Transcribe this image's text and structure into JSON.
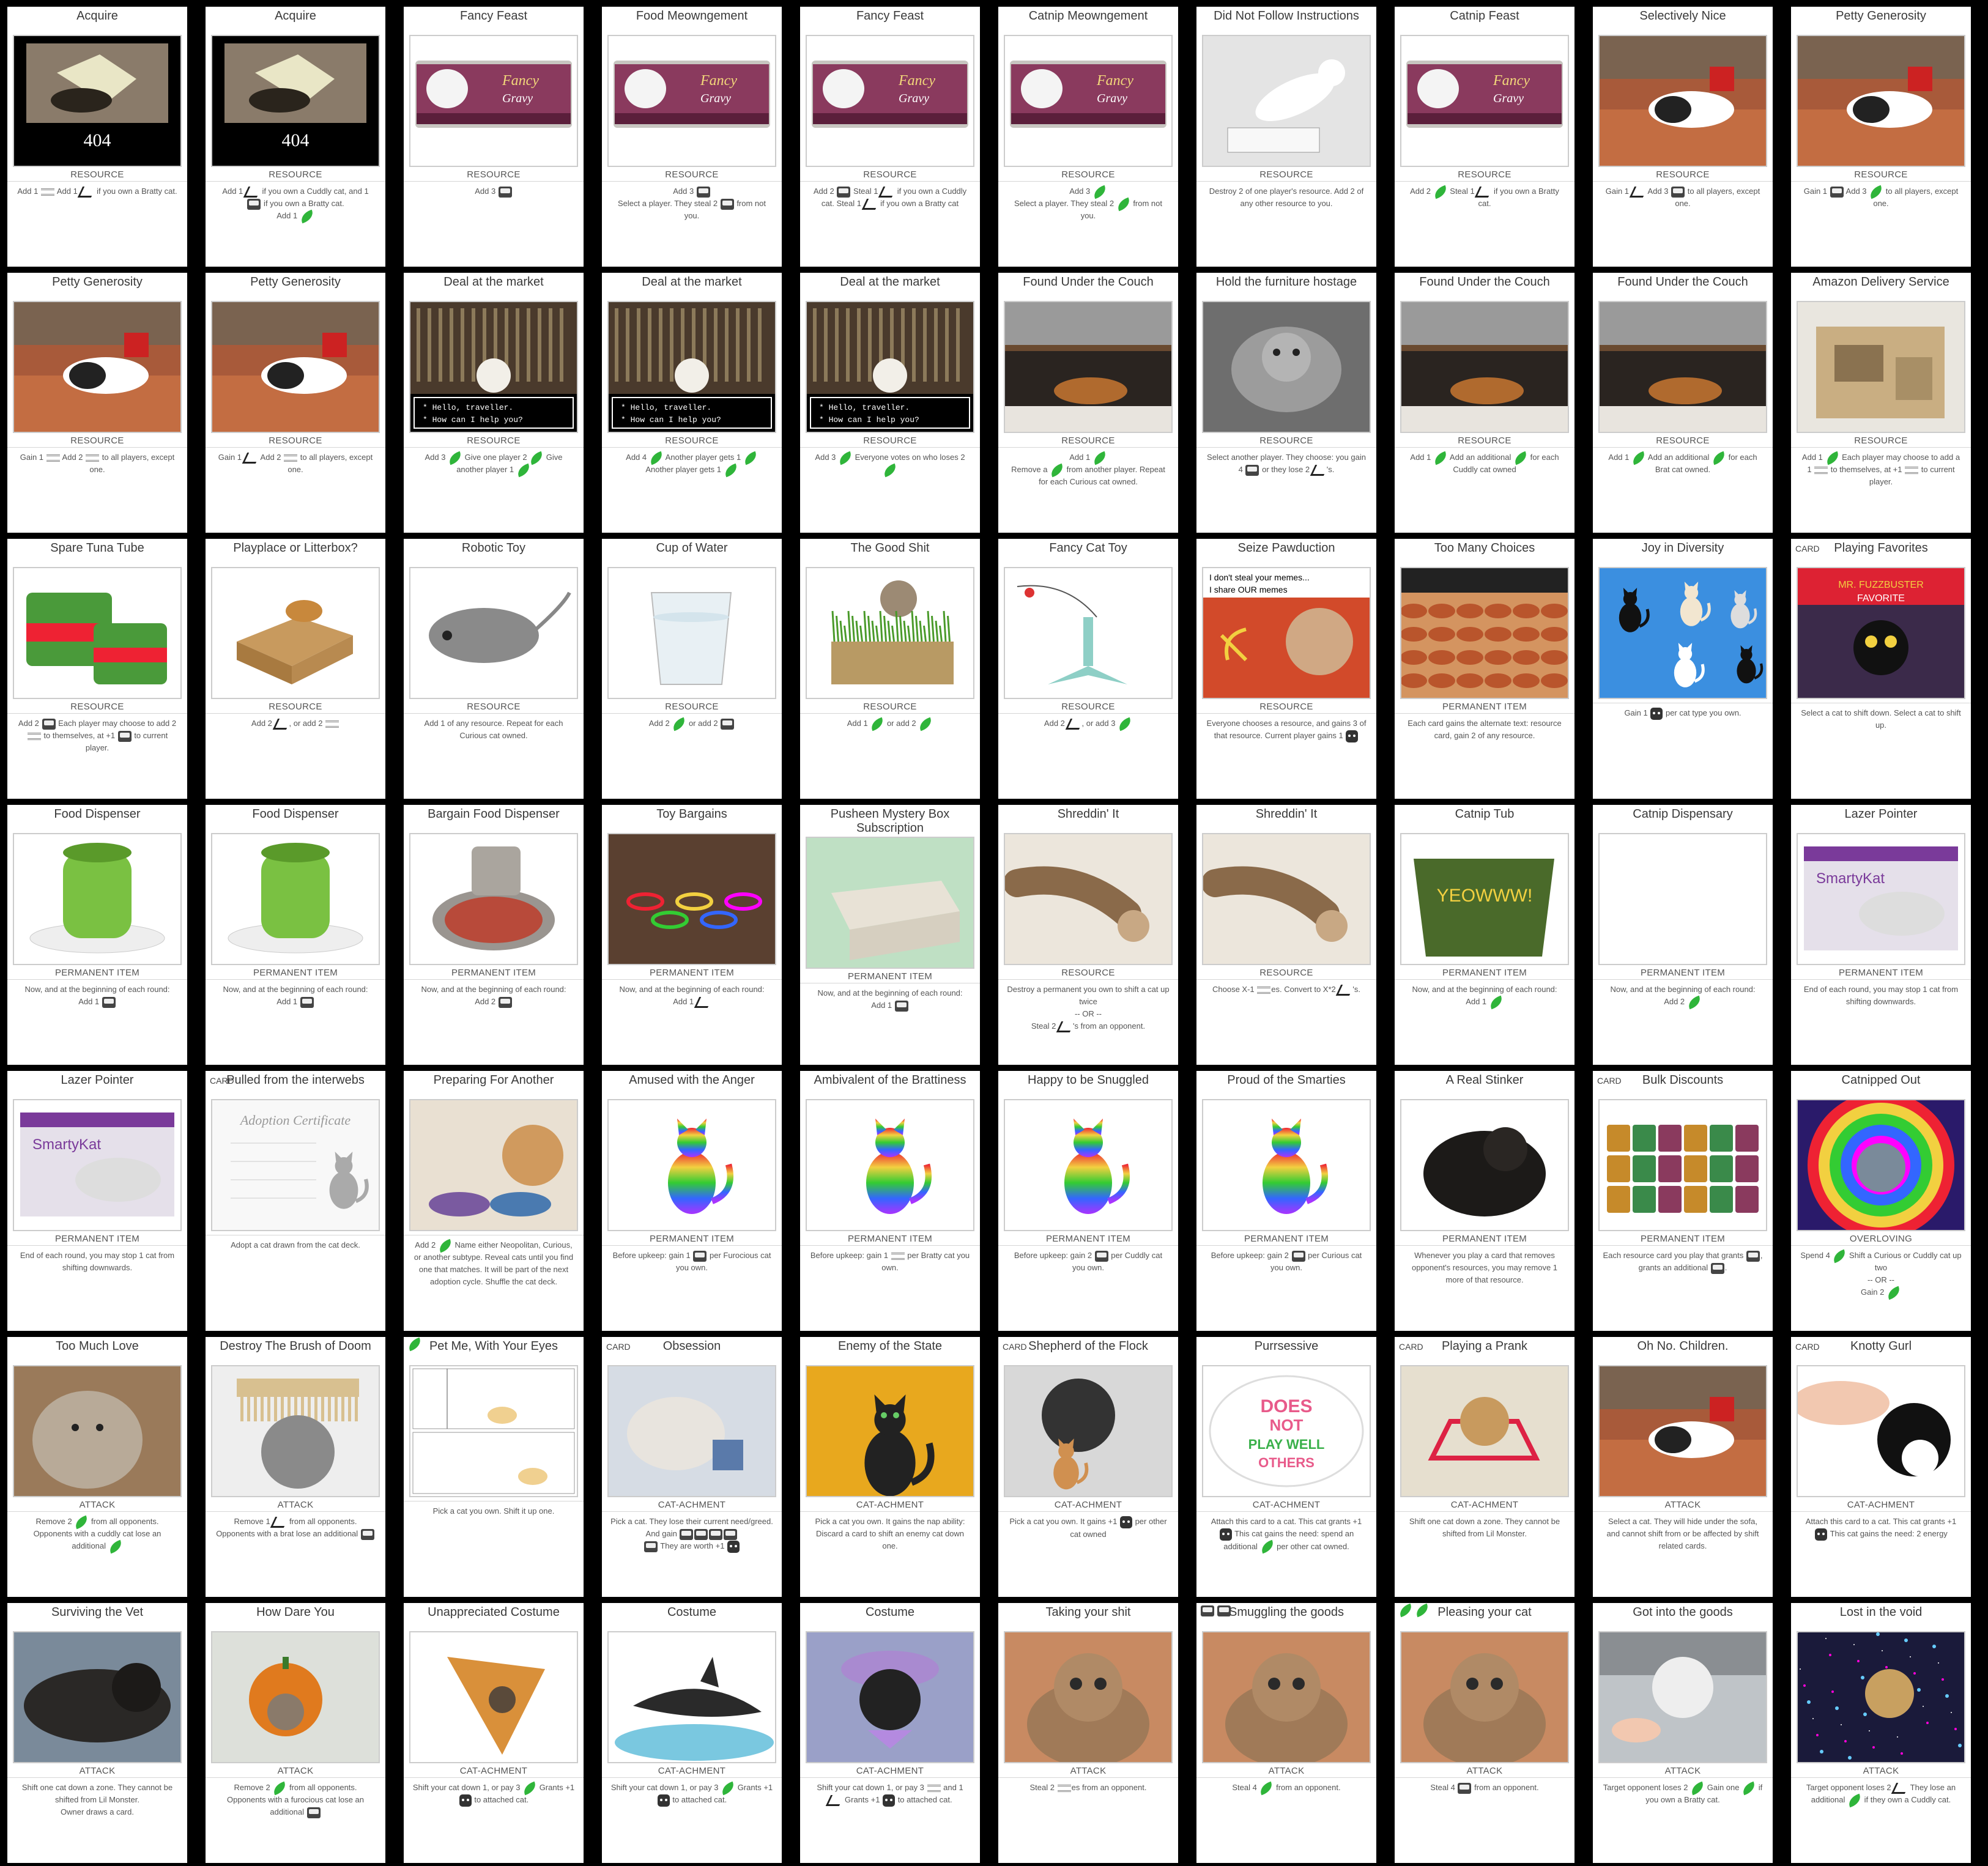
{
  "colors": {
    "background": "#000000",
    "card": "#ffffff",
    "leaf": "#2fb53a"
  },
  "icons": {
    "leaf": "leaf-icon",
    "food": "food-can-icon",
    "mouse": "mouse-icon",
    "shred": "shred-icon",
    "cat": "cat-icon"
  },
  "cards": [
    {
      "title": "Acquire",
      "type": "RESOURCE",
      "art": "404",
      "text": "Add 1 {shred} Add 1 {mouse} if you own a Bratty cat."
    },
    {
      "title": "Acquire",
      "type": "RESOURCE",
      "art": "404",
      "text": "Add 1 {mouse} if you own a Cuddly cat, and 1 {food} if you own a Bratty cat.\nAdd 1 {leaf}"
    },
    {
      "title": "Fancy Feast",
      "type": "RESOURCE",
      "art": "can",
      "text": "Add 3 {food}"
    },
    {
      "title": "Food Meowngement",
      "type": "RESOURCE",
      "art": "can",
      "text": "Add 3 {food}\nSelect a player. They steal 2 {food} from not you."
    },
    {
      "title": "Fancy Feast",
      "type": "RESOURCE",
      "art": "can",
      "text": "Add 2 {food} Steal 1 {mouse} if you own a Cuddly cat. Steal 1 {mouse} if you own a Bratty cat"
    },
    {
      "title": "Catnip Meowngement",
      "type": "RESOURCE",
      "art": "can",
      "text": "Add 3 {leaf}\nSelect a player. They steal 2 {leaf} from not you."
    },
    {
      "title": "Did Not Follow Instructions",
      "type": "RESOURCE",
      "art": "whitecat",
      "text": "Destroy 2 of one player's resource. Add 2 of any other resource to you."
    },
    {
      "title": "Catnip Feast",
      "type": "RESOURCE",
      "art": "can",
      "text": "Add 2 {leaf} Steal 1 {mouse} if you own a Bratty cat."
    },
    {
      "title": "Selectively Nice",
      "type": "RESOURCE",
      "art": "sofa",
      "text": "Gain 1 {mouse} Add 3 {food} to all players, except one."
    },
    {
      "title": "Petty Generosity",
      "type": "RESOURCE",
      "art": "sofa",
      "text": "Gain 1 {food} Add 3 {leaf} to all players, except one."
    },
    {
      "title": "Petty Generosity",
      "type": "RESOURCE",
      "art": "sofa",
      "text": "Gain 1 {shred} Add 2 {shred} to all players, except one."
    },
    {
      "title": "Petty Generosity",
      "type": "RESOURCE",
      "art": "sofa",
      "text": "Gain 1 {mouse} Add 2 {shred} to all players, except one."
    },
    {
      "title": "Deal at the market",
      "type": "RESOURCE",
      "art": "market",
      "text": "Add 3 {leaf} Give one player 2 {leaf} Give another player 1 {leaf}"
    },
    {
      "title": "Deal at the market",
      "type": "RESOURCE",
      "art": "market",
      "text": "Add 4 {leaf} Another player gets 1 {leaf}\nAnother player gets 1 {leaf}"
    },
    {
      "title": "Deal at the market",
      "type": "RESOURCE",
      "art": "market",
      "text": "Add 3 {leaf} Everyone votes on who loses 2 {leaf}"
    },
    {
      "title": "Found Under the Couch",
      "type": "RESOURCE",
      "art": "couch",
      "text": "Add 1 {leaf}\nRemove a {leaf} from another player. Repeat for each Curious cat owned."
    },
    {
      "title": "Hold the furniture hostage",
      "type": "RESOURCE",
      "art": "graycat",
      "text": "Select another player. They choose: you gain 4 {food} or they lose 2 {mouse}'s."
    },
    {
      "title": "Found Under the Couch",
      "type": "RESOURCE",
      "art": "couch",
      "text": "Add 1 {leaf} Add an additional {leaf} for each Cuddly cat owned"
    },
    {
      "title": "Found Under the Couch",
      "type": "RESOURCE",
      "art": "couch",
      "text": "Add 1 {leaf} Add an additional {leaf} for each Brat cat owned."
    },
    {
      "title": "Amazon Delivery Service",
      "type": "RESOURCE",
      "art": "box",
      "text": "Add 1 {leaf} Each player may choose to add a 1 {shred} to themselves, at +1 {shred} to current player."
    },
    {
      "title": "Spare Tuna Tube",
      "type": "RESOURCE",
      "art": "tuna",
      "text": "Add 2 {food} Each player may choose to add 2 {shred} to themselves, at +1 {food} to current player."
    },
    {
      "title": "Playplace or Litterbox?",
      "type": "RESOURCE",
      "art": "boxes",
      "text": "Add 2 {mouse}, or add 2 {shred}"
    },
    {
      "title": "Robotic Toy",
      "type": "RESOURCE",
      "art": "mouse",
      "text": "Add 1 of any resource. Repeat for each Curious cat owned."
    },
    {
      "title": "Cup of Water",
      "type": "RESOURCE",
      "art": "water",
      "text": "Add 2 {leaf} or add 2 {food}"
    },
    {
      "title": "The Good Shit",
      "type": "RESOURCE",
      "art": "grass",
      "text": "Add 1 {leaf} or add 2 {leaf}"
    },
    {
      "title": "Fancy Cat Toy",
      "type": "RESOURCE",
      "art": "toy",
      "text": "Add 2 {mouse}, or add 3 {leaf}"
    },
    {
      "title": "Seize Pawduction",
      "type": "RESOURCE",
      "art": "meme",
      "text": "Everyone chooses a resource, and gains 3 of that resource. Current player gains 1 {cat}"
    },
    {
      "title": "Too Many Choices",
      "type": "PERMANENT ITEM",
      "art": "hotdogs",
      "text": "Each card gains the alternate text: resource card, gain 2 of any resource."
    },
    {
      "title": "Joy in Diversity",
      "type": "",
      "art": "cats",
      "text": "Gain 1 {cat} per cat type you own."
    },
    {
      "title": "Playing Favorites",
      "tag": "CARD",
      "type": "",
      "art": "book",
      "text": "Select a cat to shift down. Select a cat to shift up."
    },
    {
      "title": "Food Dispenser",
      "type": "PERMANENT ITEM",
      "art": "dispenser",
      "text": "Now, and at the beginning of each round:\nAdd 1 {food}"
    },
    {
      "title": "Food Dispenser",
      "type": "PERMANENT ITEM",
      "art": "dispenser",
      "text": "Now, and at the beginning of each round:\nAdd 1 {food}"
    },
    {
      "title": "Bargain Food Dispenser",
      "type": "PERMANENT ITEM",
      "art": "feeder",
      "text": "Now, and at the beginning of each round:\nAdd 2 {food}"
    },
    {
      "title": "Toy Bargains",
      "type": "PERMANENT ITEM",
      "art": "springs",
      "text": "Now, and at the beginning of each round:\nAdd 1 {mouse}"
    },
    {
      "title": "Pusheen Mystery Box Subscription",
      "type": "PERMANENT ITEM",
      "art": "pusheen",
      "text": "Now, and at the beginning of each round:\nAdd 1 {food}"
    },
    {
      "title": "Shreddin' It",
      "type": "RESOURCE",
      "art": "paw",
      "text": "Destroy a permanent you own to shift a cat up twice\n-- OR --\nSteal 2 {mouse}'s from an opponent."
    },
    {
      "title": "Shreddin' It",
      "type": "RESOURCE",
      "art": "paw",
      "text": "Choose X-1 {shred}es. Convert to X*2 {mouse}'s."
    },
    {
      "title": "Catnip Tub",
      "type": "PERMANENT ITEM",
      "art": "tub",
      "text": "Now, and at the beginning of each round:\nAdd 1 {leaf}"
    },
    {
      "title": "Catnip Dispensary",
      "type": "PERMANENT ITEM",
      "art": "blank",
      "text": "Now, and at the beginning of each round:\nAdd 2 {leaf}"
    },
    {
      "title": "Lazer Pointer",
      "type": "PERMANENT ITEM",
      "art": "laser",
      "text": "End of each round, you may stop 1 cat from shifting downwards."
    },
    {
      "title": "Lazer Pointer",
      "type": "PERMANENT ITEM",
      "art": "laser",
      "text": "End of each round, you may stop 1 cat from shifting downwards."
    },
    {
      "title": "Pulled from the interwebs",
      "tag": "CARD",
      "type": "",
      "art": "certificate",
      "text": "Adopt a cat drawn from the cat deck."
    },
    {
      "title": "Preparing For Another",
      "type": "",
      "art": "bowls",
      "text": "Add 2 {leaf} Name either Neopolitan, Curious, or another subtype. Reveal cats until you find one that matches. It will be part of the next adoption cycle. Shuffle the cat deck."
    },
    {
      "title": "Amused with the Anger",
      "type": "PERMANENT ITEM",
      "art": "rainbow",
      "text": "Before upkeep: gain 1 {food} per Furocious cat you own."
    },
    {
      "title": "Ambivalent of the Brattiness",
      "type": "PERMANENT ITEM",
      "art": "rainbow",
      "text": "Before upkeep: gain 1 {shred} per Bratty cat you own."
    },
    {
      "title": "Happy to be Snuggled",
      "type": "PERMANENT ITEM",
      "art": "rainbow",
      "text": "Before upkeep: gain 2 {food} per Cuddly cat you own."
    },
    {
      "title": "Proud of the Smarties",
      "type": "PERMANENT ITEM",
      "art": "rainbow",
      "text": "Before upkeep: gain 2 {food} per Curious cat you own."
    },
    {
      "title": "A Real Stinker",
      "type": "PERMANENT ITEM",
      "art": "blackcat",
      "text": "Whenever you play a card that removes opponent's resources, you may remove 1 more of that resource."
    },
    {
      "title": "Bulk Discounts",
      "tag": "CARD",
      "type": "PERMANENT ITEM",
      "art": "cans",
      "text": "Each resource card you play that grants {food}, grants an additional {food}."
    },
    {
      "title": "Catnipped Out",
      "type": "OVERLOVING",
      "art": "psychedelic",
      "text": "Spend 4 {leaf} Shift a Curious or Cuddly cat up two\n-- OR --\nGain 2 {leaf}"
    },
    {
      "title": "Too Much Love",
      "type": "ATTACK",
      "art": "fluffy",
      "text": "Remove 2 {leaf} from all opponents.\nOpponents with a cuddly cat lose an additional {leaf}"
    },
    {
      "title": "Destroy The Brush of Doom",
      "type": "ATTACK",
      "art": "comb",
      "text": "Remove 1 {mouse} from all opponents.\nOpponents with a brat lose an additional {food}"
    },
    {
      "title": "Pet Me, With Your Eyes",
      "cost": [
        "leaf"
      ],
      "type": "",
      "art": "comic",
      "text": "Pick a cat you own. Shift it up one."
    },
    {
      "title": "Obsession",
      "tag": "CARD",
      "type": "CAT-ACHMENT",
      "art": "obsession",
      "text": "Pick a cat. They lose their current need/greed. And gain {food}{food}{food}{food}\n{food} They are worth +1 {cat}"
    },
    {
      "title": "Enemy of the State",
      "type": "CAT-ACHMENT",
      "art": "enemy",
      "text": "Pick a cat you own. It gains the nap ability: Discard a card to shift an enemy cat down one."
    },
    {
      "title": "Shepherd of the Flock",
      "tag": "CARD",
      "type": "CAT-ACHMENT",
      "art": "shadow",
      "text": "Pick a cat you own. It gains +1 {cat} per other cat owned"
    },
    {
      "title": "Purrsessive",
      "type": "CAT-ACHMENT",
      "art": "sticker",
      "text": "Attach this card to a cat. This cat grants +1 {cat} This cat gains the need: spend an additional {leaf} per other cat owned."
    },
    {
      "title": "Playing a Prank",
      "tag": "CARD",
      "type": "CAT-ACHMENT",
      "art": "prank",
      "text": "Shift one cat down a zone. They cannot be shifted from Lil Monster."
    },
    {
      "title": "Oh No. Children.",
      "type": "ATTACK",
      "art": "sofa2",
      "text": "Select a cat. They will hide under the sofa, and cannot shift from or be affected by shift related cards."
    },
    {
      "title": "Knotty Gurl",
      "tag": "CARD",
      "type": "CAT-ACHMENT",
      "art": "hand",
      "text": "Attach this card to a cat. This cat grants +1 {cat} This cat gains the need: 2 energy"
    },
    {
      "title": "Surviving the Vet",
      "type": "ATTACK",
      "art": "vet",
      "text": "Shift one cat down a zone. They cannot be shifted from Lil Monster.\nOwner draws a card."
    },
    {
      "title": "How Dare You",
      "type": "ATTACK",
      "art": "pumpkin",
      "text": "Remove 2 {leaf} from all opponents.\nOpponents with a furocious cat lose an additional {food}"
    },
    {
      "title": "Unappreciated Costume",
      "type": "CAT-ACHMENT",
      "art": "pie",
      "text": "Shift your cat down 1, or pay 3 {leaf} Grants +1 {cat} to attached cat."
    },
    {
      "title": "Costume",
      "type": "CAT-ACHMENT",
      "art": "shark",
      "text": "Shift your cat down 1, or pay 3 {leaf} Grants +1 {cat} to attached cat."
    },
    {
      "title": "Costume",
      "type": "CAT-ACHMENT",
      "art": "beret",
      "text": "Shift your cat down 1, or pay 3 {shred} and 1 {mouse} Grants +1 {cat} to attached cat."
    },
    {
      "title": "Taking your shit",
      "type": "ATTACK",
      "art": "tabby",
      "text": "Steal 2 {shred}es from an opponent."
    },
    {
      "title": "Smuggling the goods",
      "cost": [
        "food",
        "food"
      ],
      "type": "ATTACK",
      "art": "tabby",
      "text": "Steal 4 {leaf} from an opponent."
    },
    {
      "title": "Pleasing your cat",
      "cost": [
        "leaf",
        "leaf"
      ],
      "type": "ATTACK",
      "art": "tabby",
      "text": "Steal 4 {food} from an opponent."
    },
    {
      "title": "Got into the goods",
      "type": "ATTACK",
      "art": "goods",
      "text": "Target opponent loses 2 {leaf} Gain one {leaf} if you own a Bratty cat."
    },
    {
      "title": "Lost in the void",
      "type": "ATTACK",
      "art": "space",
      "text": "Target opponent loses 2 {mouse} They lose an additional {leaf} if they own a Cuddly cat."
    }
  ]
}
